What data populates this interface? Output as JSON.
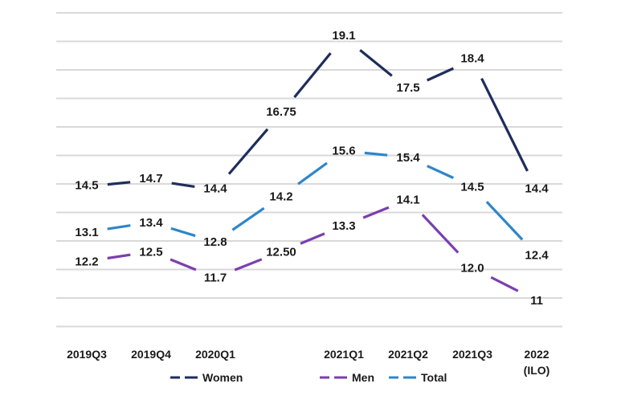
{
  "chart_data": {
    "type": "line",
    "categories": [
      "2019Q3",
      "2019Q4",
      "2020Q1",
      "",
      "2021Q1",
      "2021Q2",
      "2021Q3",
      "2022 (ILO)"
    ],
    "category_lines": [
      [
        "2019Q3"
      ],
      [
        "2019Q4"
      ],
      [
        "2020Q1"
      ],
      [],
      [
        "2021Q1"
      ],
      [
        "2021Q2"
      ],
      [
        "2021Q3"
      ],
      [
        "2022",
        "(ILO)"
      ]
    ],
    "ylim": [
      7,
      22
    ],
    "grid": true,
    "legend_position": "bottom",
    "series": [
      {
        "name": "Women",
        "color": "#1f2d5c",
        "values": [
          14.5,
          14.7,
          14.4,
          16.75,
          19.1,
          17.5,
          18.4,
          14.4
        ],
        "labels": [
          "14.5",
          "14.7",
          "14.4",
          "16.75",
          "19.1",
          "17.5",
          "18.4",
          "14.4"
        ]
      },
      {
        "name": "Men",
        "color": "#7a3fb0",
        "values": [
          12.2,
          12.5,
          11.7,
          12.5,
          13.3,
          14.1,
          12.0,
          11
        ],
        "labels": [
          "12.2",
          "12.5",
          "11.7",
          "12.50",
          "13.3",
          "14.1",
          "12.0",
          "11"
        ]
      },
      {
        "name": "Total",
        "color": "#2e86c9",
        "values": [
          13.1,
          13.4,
          12.8,
          14.2,
          15.6,
          15.4,
          14.5,
          12.4
        ],
        "labels": [
          "13.1",
          "13.4",
          "12.8",
          "14.2",
          "15.6",
          "15.4",
          "14.5",
          "12.4"
        ]
      }
    ]
  }
}
